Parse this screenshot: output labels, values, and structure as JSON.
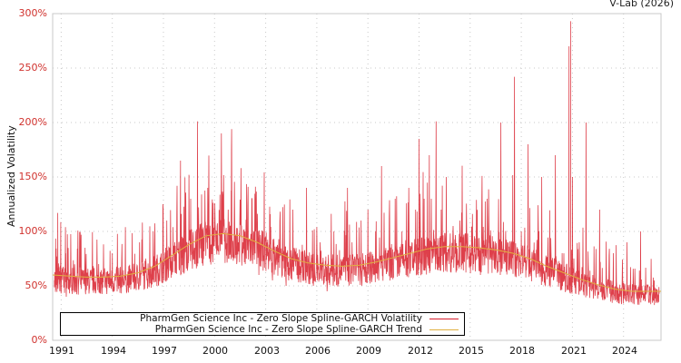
{
  "credit": "V-Lab (2026)",
  "colors": {
    "volatility": "#d81e2c",
    "trend": "#e0b040",
    "tick_label": "#d0312d",
    "grid": "#c8c8c8"
  },
  "chart_data": {
    "type": "line",
    "title": "",
    "xlabel": "",
    "ylabel": "Annualized Volatility",
    "ylim": [
      0,
      300
    ],
    "y_ticks": [
      "0%",
      "50%",
      "100%",
      "150%",
      "200%",
      "250%",
      "300%"
    ],
    "x_ticks": [
      "1991",
      "1994",
      "1997",
      "2000",
      "2003",
      "2006",
      "2009",
      "2012",
      "2015",
      "2018",
      "2021",
      "2024"
    ],
    "xlim": [
      1990.5,
      2026.2
    ],
    "grid": true,
    "legend_position": "bottom-left inside",
    "series": [
      {
        "name": "PharmGen Science Inc - Zero Slope Spline-GARCH Volatility",
        "color": "#d81e2c",
        "x": [
          1990.6,
          1990.8,
          1991.0,
          1991.3,
          1991.6,
          1992.0,
          1992.4,
          1992.8,
          1993.2,
          1993.6,
          1994.0,
          1994.4,
          1994.8,
          1995.2,
          1995.6,
          1996.0,
          1996.4,
          1996.8,
          1997.2,
          1997.6,
          1998.0,
          1998.3,
          1998.6,
          1999.0,
          1999.3,
          1999.6,
          2000.0,
          2000.4,
          2000.8,
          2001.0,
          2001.4,
          2001.8,
          2002.2,
          2002.6,
          2003.0,
          2003.4,
          2003.8,
          2004.2,
          2004.6,
          2005.0,
          2005.4,
          2005.8,
          2006.2,
          2006.6,
          2007.0,
          2007.4,
          2007.8,
          2008.2,
          2008.6,
          2009.0,
          2009.4,
          2009.8,
          2010.2,
          2010.6,
          2011.0,
          2011.4,
          2011.8,
          2012.0,
          2012.3,
          2012.6,
          2013.0,
          2013.3,
          2013.6,
          2014.0,
          2014.4,
          2014.8,
          2015.2,
          2015.6,
          2016.0,
          2016.4,
          2016.8,
          2017.2,
          2017.6,
          2018.0,
          2018.4,
          2018.8,
          2019.2,
          2019.6,
          2020.0,
          2020.4,
          2020.8,
          2020.9,
          2021.0,
          2021.4,
          2021.8,
          2022.2,
          2022.6,
          2023.0,
          2023.4,
          2023.8,
          2024.2,
          2024.6,
          2025.0,
          2025.4,
          2025.8,
          2026.1
        ],
        "values": [
          55,
          117,
          45,
          40,
          60,
          42,
          85,
          55,
          70,
          48,
          80,
          50,
          60,
          55,
          90,
          62,
          100,
          70,
          110,
          80,
          165,
          90,
          130,
          201,
          95,
          140,
          100,
          190,
          120,
          194,
          90,
          70,
          130,
          60,
          95,
          55,
          80,
          50,
          120,
          60,
          140,
          50,
          90,
          45,
          100,
          55,
          140,
          60,
          110,
          120,
          70,
          160,
          80,
          130,
          100,
          140,
          120,
          185,
          130,
          170,
          201,
          120,
          150,
          105,
          110,
          90,
          70,
          60,
          130,
          80,
          200,
          90,
          242,
          100,
          180,
          80,
          150,
          60,
          170,
          80,
          270,
          293,
          150,
          90,
          200,
          60,
          120,
          60,
          80,
          40,
          90,
          50,
          100,
          50,
          55,
          45
        ]
      },
      {
        "name": "PharmGen Science Inc - Zero Slope Spline-GARCH Trend",
        "color": "#e0b040",
        "x": [
          1990.5,
          1991.5,
          1992.5,
          1993.5,
          1994.5,
          1995.5,
          1996.5,
          1997.5,
          1998.5,
          1999.5,
          2000.5,
          2001.5,
          2002.5,
          2003.5,
          2004.5,
          2005.5,
          2006.5,
          2007.5,
          2008.5,
          2009.5,
          2010.5,
          2011.5,
          2012.5,
          2013.5,
          2014.5,
          2015.5,
          2016.5,
          2017.5,
          2018.5,
          2019.5,
          2020.5,
          2021.5,
          2022.5,
          2023.5,
          2024.5,
          2025.5,
          2026.2
        ],
        "values": [
          60,
          59,
          58,
          58,
          59,
          62,
          68,
          78,
          88,
          96,
          98,
          96,
          90,
          82,
          75,
          71,
          69,
          68,
          69,
          72,
          76,
          80,
          84,
          86,
          86,
          85,
          83,
          80,
          75,
          68,
          62,
          56,
          51,
          47,
          45,
          45,
          45
        ]
      }
    ]
  },
  "legend": {
    "items": [
      {
        "label": "PharmGen Science Inc - Zero Slope Spline-GARCH Volatility"
      },
      {
        "label": "PharmGen Science Inc - Zero Slope Spline-GARCH Trend"
      }
    ]
  }
}
